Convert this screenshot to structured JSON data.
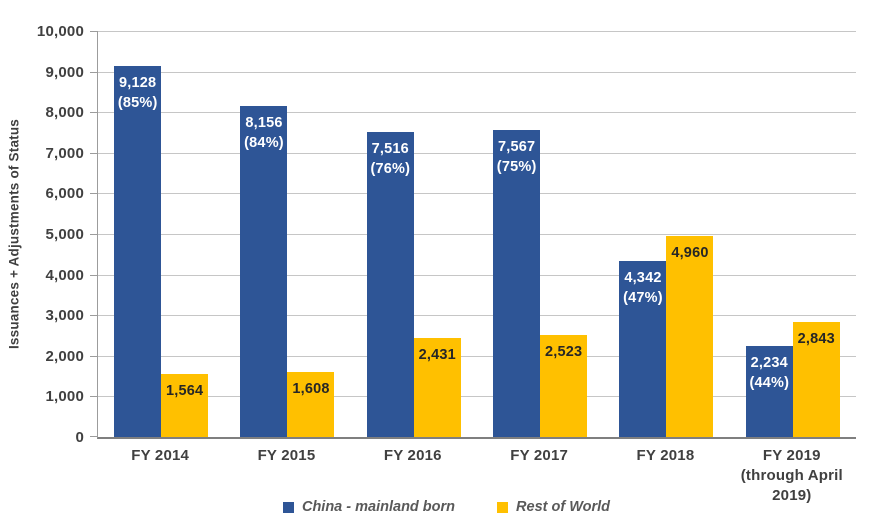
{
  "chart_data": {
    "type": "bar",
    "title": "",
    "xlabel": "",
    "ylabel": "Issuances + Adjustments of Status",
    "ylim": [
      0,
      10000
    ],
    "ytick_step": 1000,
    "yticks": [
      "0",
      "1,000",
      "2,000",
      "3,000",
      "4,000",
      "5,000",
      "6,000",
      "7,000",
      "8,000",
      "9,000",
      "10,000"
    ],
    "grid": true,
    "legend_position": "bottom",
    "categories": [
      "FY 2014",
      "FY 2015",
      "FY 2016",
      "FY 2017",
      "FY 2018",
      "FY 2019 (through April 2019)"
    ],
    "series": [
      {
        "name": "China - mainland born",
        "color": "#2e5596",
        "label_color": "#ffffff",
        "values": [
          9128,
          8156,
          7516,
          7567,
          4342,
          2234
        ],
        "value_labels": [
          "9,128",
          "8,156",
          "7,516",
          "7,567",
          "4,342",
          "2,234"
        ],
        "pct_labels": [
          "(85%)",
          "(84%)",
          "(76%)",
          "(75%)",
          "(47%)",
          "(44%)"
        ]
      },
      {
        "name": "Rest of World",
        "color": "#ffc000",
        "label_color": "#262626",
        "values": [
          1564,
          1608,
          2431,
          2523,
          4960,
          2843
        ],
        "value_labels": [
          "1,564",
          "1,608",
          "2,431",
          "2,523",
          "4,960",
          "2,843"
        ],
        "pct_labels": [
          "",
          "",
          "",
          "",
          "",
          ""
        ]
      }
    ],
    "legend": [
      {
        "label": "China - mainland born",
        "color": "#2e5596"
      },
      {
        "label": "Rest of World",
        "color": "#ffc000"
      }
    ]
  },
  "colors": {
    "gridline": "#c6c6c6",
    "axis_line": "#9c9c9c",
    "tick_text": "#404040",
    "legend_text": "#595959",
    "background": "#ffffff"
  }
}
